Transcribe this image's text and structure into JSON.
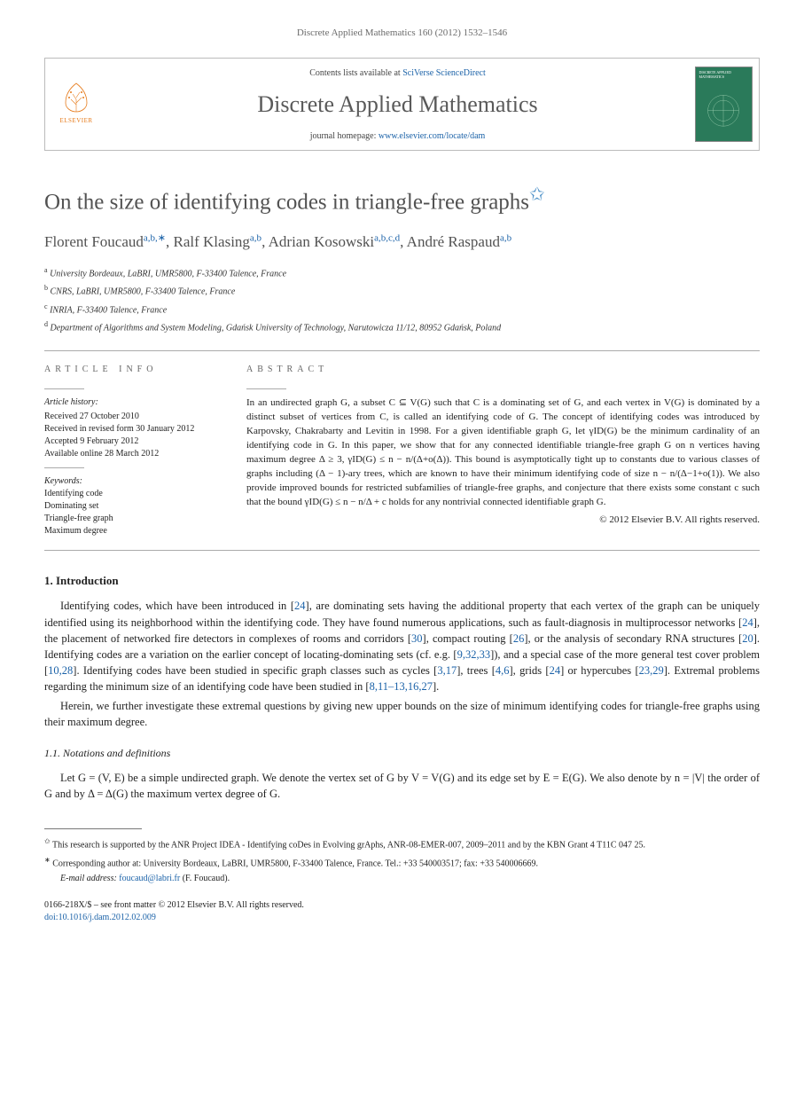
{
  "journal_ref": "Discrete Applied Mathematics 160 (2012) 1532–1546",
  "header": {
    "contents_prefix": "Contents lists available at ",
    "contents_link": "SciVerse ScienceDirect",
    "journal_name": "Discrete Applied Mathematics",
    "homepage_prefix": "journal homepage: ",
    "homepage_link": "www.elsevier.com/locate/dam",
    "publisher_label": "ELSEVIER",
    "cover_text": "DISCRETE APPLIED MATHEMATICS"
  },
  "title": "On the size of identifying codes in triangle-free graphs",
  "title_marker": "✩",
  "authors": [
    {
      "name": "Florent Foucaud",
      "affs": "a,b,∗"
    },
    {
      "name": "Ralf Klasing",
      "affs": "a,b"
    },
    {
      "name": "Adrian Kosowski",
      "affs": "a,b,c,d"
    },
    {
      "name": "André Raspaud",
      "affs": "a,b"
    }
  ],
  "affiliations": [
    {
      "sup": "a",
      "text": "University Bordeaux, LaBRI, UMR5800, F-33400 Talence, France"
    },
    {
      "sup": "b",
      "text": "CNRS, LaBRI, UMR5800, F-33400 Talence, France"
    },
    {
      "sup": "c",
      "text": "INRIA, F-33400 Talence, France"
    },
    {
      "sup": "d",
      "text": "Department of Algorithms and System Modeling, Gdańsk University of Technology, Narutowicza 11/12, 80952 Gdańsk, Poland"
    }
  ],
  "info": {
    "label": "ARTICLE INFO",
    "history_label": "Article history:",
    "history": [
      "Received 27 October 2010",
      "Received in revised form 30 January 2012",
      "Accepted 9 February 2012",
      "Available online 28 March 2012"
    ],
    "keywords_label": "Keywords:",
    "keywords": [
      "Identifying code",
      "Dominating set",
      "Triangle-free graph",
      "Maximum degree"
    ]
  },
  "abstract": {
    "label": "ABSTRACT",
    "text": "In an undirected graph G, a subset C ⊆ V(G) such that C is a dominating set of G, and each vertex in V(G) is dominated by a distinct subset of vertices from C, is called an identifying code of G. The concept of identifying codes was introduced by Karpovsky, Chakrabarty and Levitin in 1998. For a given identifiable graph G, let γID(G) be the minimum cardinality of an identifying code in G. In this paper, we show that for any connected identifiable triangle-free graph G on n vertices having maximum degree Δ ≥ 3, γID(G) ≤ n − n/(Δ+o(Δ)). This bound is asymptotically tight up to constants due to various classes of graphs including (Δ − 1)-ary trees, which are known to have their minimum identifying code of size n − n/(Δ−1+o(1)). We also provide improved bounds for restricted subfamilies of triangle-free graphs, and conjecture that there exists some constant c such that the bound γID(G) ≤ n − n/Δ + c holds for any nontrivial connected identifiable graph G.",
    "copyright": "© 2012 Elsevier B.V. All rights reserved."
  },
  "body": {
    "s1_title": "1.  Introduction",
    "p1": "Identifying codes, which have been introduced in [24], are dominating sets having the additional property that each vertex of the graph can be uniquely identified using its neighborhood within the identifying code. They have found numerous applications, such as fault-diagnosis in multiprocessor networks [24], the placement of networked fire detectors in complexes of rooms and corridors [30], compact routing [26], or the analysis of secondary RNA structures [20]. Identifying codes are a variation on the earlier concept of locating-dominating sets (cf. e.g. [9,32,33]), and a special case of the more general test cover problem [10,28]. Identifying codes have been studied in specific graph classes such as cycles [3,17], trees [4,6], grids [24] or hypercubes [23,29]. Extremal problems regarding the minimum size of an identifying code have been studied in [8,11–13,16,27].",
    "p2": "Herein, we further investigate these extremal questions by giving new upper bounds on the size of minimum identifying codes for triangle-free graphs using their maximum degree.",
    "s11_title": "1.1.  Notations and definitions",
    "p3": "Let G = (V, E) be a simple undirected graph. We denote the vertex set of G by V = V(G) and its edge set by E = E(G). We also denote by n = |V| the order of G and by Δ = Δ(G) the maximum vertex degree of G."
  },
  "footnotes": {
    "f1_sym": "✩",
    "f1": "This research is supported by the ANR Project IDEA - Identifying coDes in Evolving grAphs, ANR-08-EMER-007, 2009–2011 and by the KBN Grant 4 T11C 047 25.",
    "f2_sym": "∗",
    "f2": "Corresponding author at: University Bordeaux, LaBRI, UMR5800, F-33400 Talence, France. Tel.: +33 540003517; fax: +33 540006669.",
    "f3_label": "E-mail address:",
    "f3_email": "foucaud@labri.fr",
    "f3_tail": "(F. Foucaud)."
  },
  "bottom": {
    "line1": "0166-218X/$ – see front matter © 2012 Elsevier B.V. All rights reserved.",
    "doi_label": "doi:",
    "doi": "10.1016/j.dam.2012.02.009"
  },
  "colors": {
    "link": "#1b62a8",
    "heading": "#525252",
    "rule": "#aaaaaa",
    "elsevier": "#e67a1a",
    "cover": "#2a7a5a"
  }
}
